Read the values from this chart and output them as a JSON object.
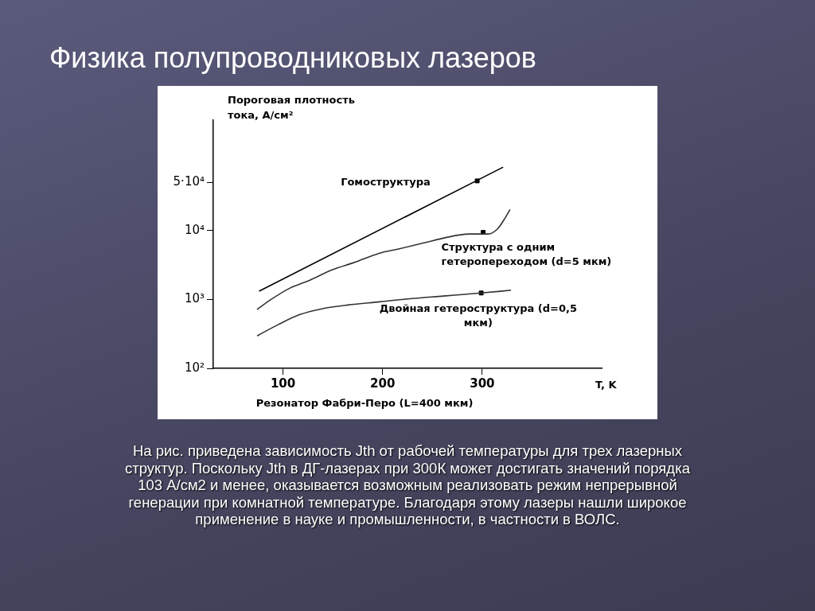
{
  "chart_data": {
    "type": "line",
    "title": "Физика полупроводниковых лазеров",
    "ylabel": "Пороговая плотность тока, А/см²",
    "xlabel": "T, K",
    "log": "y",
    "grid": false,
    "legend": false,
    "marker": "none",
    "line_style": "solid",
    "xlim": [
      30,
      420
    ],
    "xticks": [
      100,
      200,
      300
    ],
    "ylim": [
      100,
      400000
    ],
    "yticks": [
      {
        "value": 100,
        "label": "10²"
      },
      {
        "value": 1000,
        "label": "10³"
      },
      {
        "value": 10000,
        "label": "10⁴"
      },
      {
        "value": 50000,
        "label": "5·10⁴"
      }
    ],
    "series": [
      {
        "name": "Гомоструктура",
        "color": "#000000",
        "x": [
          76,
          321
        ],
        "values": [
          1320,
          83000
        ]
      },
      {
        "name": "Структура с одним гетеропереходом (d=5 мкм)",
        "color": "#333333",
        "x": [
          74,
          88,
          107,
          127,
          149,
          171,
          197,
          216,
          245,
          261,
          287,
          306,
          315,
          322,
          328
        ],
        "values": [
          715,
          1000,
          1460,
          1900,
          2680,
          3420,
          4700,
          5400,
          6800,
          7750,
          8900,
          8900,
          10400,
          14400,
          20200
        ]
      },
      {
        "name": "Двойная гетероструктура (d=0,5 мкм)",
        "color": "#333333",
        "x": [
          74,
          95,
          117,
          139,
          165,
          197,
          229,
          261,
          299,
          329
        ],
        "values": [
          296,
          430,
          604,
          731,
          830,
          923,
          1030,
          1120,
          1240,
          1360
        ]
      },
      {
        "type": "scatter",
        "marker": "square",
        "color": "#000000",
        "x": [
          295,
          301,
          299
        ],
        "values": [
          52500,
          9400,
          1240
        ]
      }
    ],
    "annotations": [
      "Резонатор Фабри-Перо (L=400 мкм)",
      "На рис. приведена зависимость Jth от рабочей температуры для трех лазерных структур. Поскольку Jth в ДГ-лазерах при 300К может достигать значений порядка 103 А/см2 и менее, оказывается возможным реализовать режим непрерывной генерации при комнатной температуре. Благодаря этому лазеры нашли широкое применение в науке и промышленности, в частности в ВОЛС."
    ]
  }
}
